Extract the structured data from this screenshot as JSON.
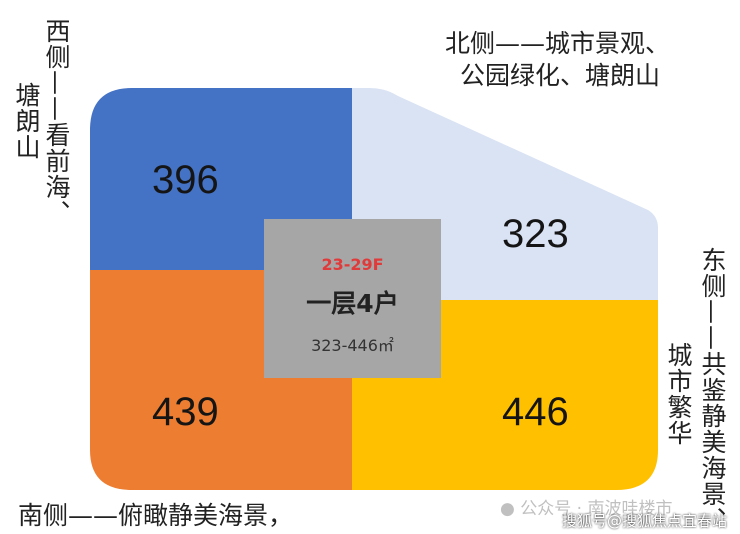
{
  "north_label": [
    "北侧——城市景观、",
    "公园绿化、塘朗山"
  ],
  "west_label": {
    "col1": "西侧——看前海、",
    "col2": "塘朗山"
  },
  "east_label": {
    "col1": "东侧——共鉴静美海景、",
    "col2": "城市繁华"
  },
  "south_label": "南侧——俯瞰静美海景，",
  "units": [
    {
      "area": "396",
      "color": "#4472c4"
    },
    {
      "area": "323",
      "color": "#dae3f3"
    },
    {
      "area": "439",
      "color": "#ed7d31"
    },
    {
      "area": "446",
      "color": "#ffc000"
    }
  ],
  "center": {
    "floors": "23-29F",
    "floors_color": "#e03a3a",
    "title": "一层4户",
    "range": "323-446㎡"
  },
  "watermarks": [
    "公众号 · 南波哇楼市",
    "搜狐号@搜狐焦点宜春站"
  ]
}
